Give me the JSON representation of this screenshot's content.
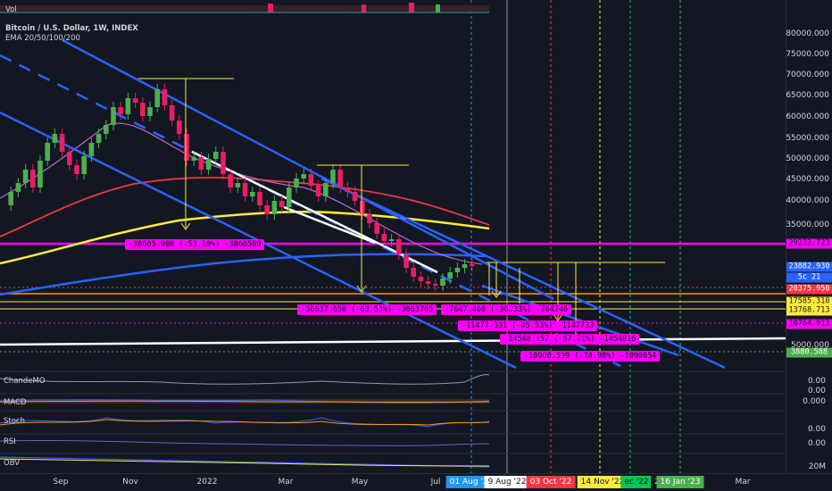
{
  "header": {
    "vol_label": "Vol",
    "title": "Bitcoin / U.S. Dollar, 1W, INDEX",
    "ema_label": "EMA 20/50/100/200"
  },
  "price_axis": {
    "ticks": [
      "80000.000",
      "75000.000",
      "70000.000",
      "65000.000",
      "60000.000",
      "55000.000",
      "50000.000",
      "45000.000",
      "40000.000",
      "35000.000",
      "5000.000"
    ],
    "tags": [
      {
        "text": "29232.723",
        "bg": "#ff00ff",
        "fg": "#131722"
      },
      {
        "text": "23882.930",
        "bg": "#2962ff",
        "fg": "#ffffff"
      },
      {
        "text": "5c 21",
        "bg": "#2962ff",
        "fg": "#ffffff"
      },
      {
        "text": "20375.950",
        "bg": "#f23645",
        "fg": "#ffffff"
      },
      {
        "text": "17585.310",
        "bg": "#ffeb3b",
        "fg": "#131722"
      },
      {
        "text": "13768.713",
        "bg": "#ffeb3b",
        "fg": "#131722"
      },
      {
        "text": "10764.913",
        "bg": "#ff00ff",
        "fg": "#131722"
      },
      {
        "text": "3880.588",
        "bg": "#4caf50",
        "fg": "#ffffff"
      }
    ]
  },
  "measure_labels": [
    "-38605.000 (-53.10%) -3860500",
    "-30637.650 (-63.53%) -3063765",
    "-7647.460 (-30.33%) -764746",
    "-11477.331 (-45.53%) -1147733",
    "-14548.157 (-57.71%) -1454816",
    "-18900.539 (-74.98%) -1890054"
  ],
  "indicators": [
    {
      "label": "ChandeMO",
      "values": [
        "0.00",
        "0.00"
      ]
    },
    {
      "label": "MACD",
      "values": [
        "0.000"
      ]
    },
    {
      "label": "Stoch",
      "values": [
        "0.00"
      ]
    },
    {
      "label": "RSI",
      "values": [
        "0.00"
      ]
    },
    {
      "label": "OBV",
      "values": [
        "20M"
      ]
    }
  ],
  "time_axis": {
    "ticks": [
      "Sep",
      "Nov",
      "2022",
      "Mar",
      "May",
      "Jul",
      "Mar"
    ],
    "date_tags": [
      {
        "text": "01 Aug '22",
        "bg": "#2196f3",
        "fg": "#ffffff"
      },
      {
        "text": "9 Aug '22",
        "bg": "#ffffff",
        "fg": "#131722"
      },
      {
        "text": "03 Oct '22",
        "bg": "#f23645",
        "fg": "#ffffff"
      },
      {
        "text": "14 Nov '22",
        "bg": "#ffeb3b",
        "fg": "#131722"
      },
      {
        "text": "ec '22",
        "bg": "#00c853",
        "fg": "#131722"
      },
      {
        "text": "2",
        "bg": "#131722",
        "fg": "#d1d4dc"
      },
      {
        "text": "16 Jan '23",
        "bg": "#4caf50",
        "fg": "#ffffff"
      }
    ]
  }
}
